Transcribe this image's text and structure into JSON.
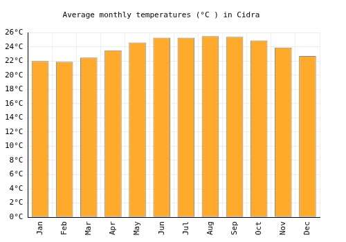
{
  "chart_data": {
    "type": "bar",
    "title": "Average monthly temperatures (°C ) in Cidra",
    "categories": [
      "Jan",
      "Feb",
      "Mar",
      "Apr",
      "May",
      "Jun",
      "Jul",
      "Aug",
      "Sep",
      "Oct",
      "Nov",
      "Dec"
    ],
    "values": [
      22.0,
      21.9,
      22.5,
      23.5,
      24.6,
      25.3,
      25.3,
      25.5,
      25.4,
      24.9,
      23.9,
      22.7
    ],
    "color": "#ffaa2b",
    "ylim": [
      0,
      26
    ],
    "yticks": [
      {
        "value": 0,
        "label": "0°C"
      },
      {
        "value": 2,
        "label": "2°C"
      },
      {
        "value": 4,
        "label": "4°C"
      },
      {
        "value": 6,
        "label": "6°C"
      },
      {
        "value": 8,
        "label": "8°C"
      },
      {
        "value": 10,
        "label": "10°C"
      },
      {
        "value": 12,
        "label": "12°C"
      },
      {
        "value": 14,
        "label": "14°C"
      },
      {
        "value": 16,
        "label": "16°C"
      },
      {
        "value": 18,
        "label": "18°C"
      },
      {
        "value": 20,
        "label": "20°C"
      },
      {
        "value": 22,
        "label": "22°C"
      },
      {
        "value": 24,
        "label": "24°C"
      },
      {
        "value": 26,
        "label": "26°C"
      }
    ],
    "grid": true
  }
}
